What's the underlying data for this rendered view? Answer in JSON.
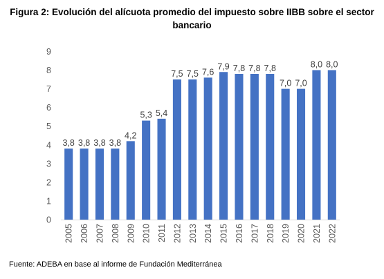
{
  "figure": {
    "title_line1": "Figura 2: Evolución del alícuota promedio del impuesto sobre IIBB sobre el sector",
    "title_line2": "bancario"
  },
  "source": "Fuente: ADEBA en base al informe de Fundación Mediterránea",
  "chart_data": {
    "type": "bar",
    "title": "Figura 2: Evolución del alícuota promedio del impuesto sobre IIBB sobre el sector bancario",
    "xlabel": "",
    "ylabel": "",
    "categories": [
      "2005",
      "2006",
      "2007",
      "2008",
      "2009",
      "2010",
      "2011",
      "2012",
      "2013",
      "2014",
      "2015",
      "2016",
      "2017",
      "2018",
      "2019",
      "2020",
      "2021",
      "2022"
    ],
    "values": [
      3.8,
      3.8,
      3.8,
      3.8,
      4.2,
      5.3,
      5.4,
      7.5,
      7.5,
      7.6,
      7.9,
      7.8,
      7.8,
      7.8,
      7.0,
      7.0,
      8.0,
      8.0
    ],
    "data_labels": [
      "3,8",
      "3,8",
      "3,8",
      "3,8",
      "4,2",
      "5,3",
      "5,4",
      "7,5",
      "7,5",
      "7,6",
      "7,9",
      "7,8",
      "7,8",
      "7,8",
      "7,0",
      "7,0",
      "8,0",
      "8,0"
    ],
    "ylim": [
      0,
      9
    ],
    "yticks": [
      "0",
      "1",
      "2",
      "3",
      "4",
      "5",
      "6",
      "7",
      "8",
      "9"
    ],
    "grid": false,
    "legend": "none",
    "bar_color": "#4472C4"
  }
}
